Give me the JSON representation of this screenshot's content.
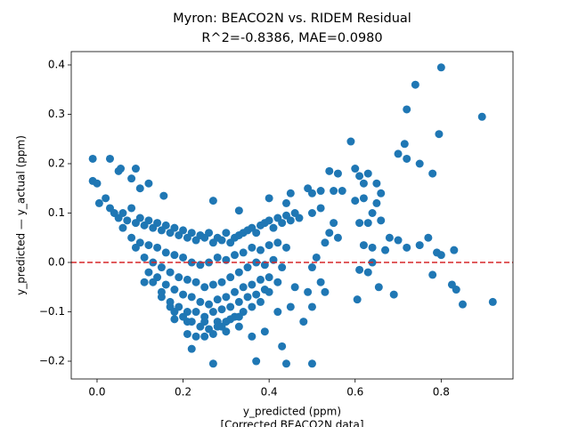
{
  "chart_data": {
    "type": "scatter",
    "title": "Myron: BEACO2N vs. RIDEM Residual",
    "subtitle": "R^2=-0.8386, MAE=0.0980",
    "x_label": "y_predicted (ppm)",
    "x_label_2": "[Corrected BEACO2N data]",
    "y_label": "y_predicted — y_actual (ppm)",
    "xlim": [
      -0.06,
      0.967
    ],
    "ylim": [
      -0.236,
      0.427
    ],
    "xticks": [
      {
        "value": 0,
        "label": "0.0"
      },
      0.2,
      0.4,
      0.6,
      0.8
    ],
    "yticks": [
      {
        "value": -0.2,
        "label": "−0.2"
      },
      {
        "value": -0.1,
        "label": "−0.1"
      },
      {
        "value": 0,
        "label": "0.0"
      },
      0.1,
      0.2,
      0.3,
      0.4
    ],
    "hline": 0,
    "hline_color": "#d62728",
    "color": "#1f77b4",
    "x": [
      -0.01,
      -0.01,
      0.0,
      0.005,
      0.03,
      0.05,
      0.055,
      0.08,
      0.09,
      0.1,
      0.12,
      0.155,
      0.27,
      0.33,
      0.4,
      0.44,
      0.45,
      0.49,
      0.5,
      0.52,
      0.54,
      0.56,
      0.55,
      0.57,
      0.59,
      0.6,
      0.61,
      0.62,
      0.63,
      0.65,
      0.66,
      0.7,
      0.715,
      0.72,
      0.74,
      0.72,
      0.75,
      0.78,
      0.8,
      0.795,
      0.895,
      0.64,
      0.65,
      0.62,
      0.6,
      0.61,
      0.63,
      0.66,
      0.68,
      0.7,
      0.72,
      0.75,
      0.77,
      0.79,
      0.8,
      0.83,
      0.62,
      0.64,
      0.67,
      0.64,
      0.61,
      0.63,
      0.655,
      0.69,
      0.605,
      0.78,
      0.825,
      0.835,
      0.85,
      0.92,
      0.5,
      0.52,
      0.55,
      0.53,
      0.56,
      0.54,
      0.51,
      0.5,
      0.52,
      0.49,
      0.46,
      0.53,
      0.5,
      0.48,
      0.43,
      0.44,
      0.5,
      0.37,
      0.27,
      0.22,
      0.39,
      0.36,
      0.33,
      0.3,
      0.28,
      0.25,
      0.21,
      0.18,
      0.17,
      0.15,
      0.11,
      0.13,
      0.42,
      0.45,
      0.4,
      0.38,
      0.02,
      0.03,
      0.04,
      0.05,
      0.06,
      0.07,
      0.08,
      0.09,
      0.1,
      0.11,
      0.12,
      0.13,
      0.14,
      0.15,
      0.16,
      0.17,
      0.18,
      0.19,
      0.2,
      0.21,
      0.22,
      0.23,
      0.24,
      0.25,
      0.26,
      0.27,
      0.28,
      0.29,
      0.3,
      0.31,
      0.32,
      0.33,
      0.34,
      0.35,
      0.36,
      0.37,
      0.38,
      0.39,
      0.4,
      0.41,
      0.42,
      0.43,
      0.44,
      0.45,
      0.46,
      0.47,
      0.06,
      0.08,
      0.1,
      0.12,
      0.14,
      0.16,
      0.18,
      0.2,
      0.22,
      0.24,
      0.26,
      0.28,
      0.3,
      0.32,
      0.34,
      0.36,
      0.38,
      0.4,
      0.42,
      0.44,
      0.09,
      0.11,
      0.13,
      0.15,
      0.17,
      0.19,
      0.21,
      0.23,
      0.25,
      0.27,
      0.29,
      0.31,
      0.33,
      0.35,
      0.37,
      0.39,
      0.41,
      0.43,
      0.12,
      0.14,
      0.16,
      0.18,
      0.2,
      0.22,
      0.24,
      0.26,
      0.28,
      0.3,
      0.32,
      0.34,
      0.36,
      0.38,
      0.4,
      0.42,
      0.15,
      0.17,
      0.19,
      0.21,
      0.23,
      0.25,
      0.27,
      0.29,
      0.31,
      0.33,
      0.35,
      0.37,
      0.39,
      0.18,
      0.2,
      0.22,
      0.24,
      0.26,
      0.28,
      0.3,
      0.32,
      0.34,
      0.36,
      0.21,
      0.23,
      0.25,
      0.27,
      0.29,
      0.31,
      0.33
    ],
    "values": [
      0.21,
      0.165,
      0.16,
      0.12,
      0.21,
      0.185,
      0.19,
      0.17,
      0.19,
      0.15,
      0.16,
      0.135,
      0.125,
      0.105,
      0.13,
      0.12,
      0.14,
      0.15,
      0.14,
      0.145,
      0.185,
      0.18,
      0.145,
      0.145,
      0.245,
      0.19,
      0.175,
      0.16,
      0.18,
      0.16,
      0.14,
      0.22,
      0.24,
      0.31,
      0.36,
      0.21,
      0.2,
      0.18,
      0.395,
      0.26,
      0.295,
      0.1,
      0.12,
      0.13,
      0.125,
      0.08,
      0.08,
      0.085,
      0.05,
      0.045,
      0.03,
      0.035,
      0.05,
      0.02,
      0.015,
      0.025,
      0.035,
      0.03,
      0.025,
      0.0,
      -0.015,
      -0.02,
      -0.05,
      -0.065,
      -0.075,
      -0.025,
      -0.045,
      -0.055,
      -0.085,
      -0.08,
      0.1,
      0.11,
      0.08,
      0.04,
      0.05,
      0.06,
      0.01,
      -0.01,
      -0.04,
      -0.06,
      -0.05,
      -0.06,
      -0.09,
      -0.12,
      -0.17,
      -0.205,
      -0.205,
      -0.2,
      -0.205,
      -0.175,
      -0.14,
      -0.15,
      -0.13,
      -0.14,
      -0.12,
      -0.12,
      -0.12,
      -0.115,
      -0.09,
      -0.07,
      -0.04,
      -0.04,
      -0.1,
      -0.09,
      -0.06,
      -0.08,
      0.13,
      0.11,
      0.1,
      0.09,
      0.1,
      0.085,
      0.11,
      0.08,
      0.09,
      0.075,
      0.085,
      0.07,
      0.08,
      0.065,
      0.075,
      0.06,
      0.07,
      0.055,
      0.065,
      0.05,
      0.06,
      0.045,
      0.055,
      0.05,
      0.06,
      0.04,
      0.05,
      0.045,
      0.06,
      0.04,
      0.05,
      0.055,
      0.06,
      0.065,
      0.07,
      0.06,
      0.075,
      0.08,
      0.085,
      0.07,
      0.09,
      0.08,
      0.095,
      0.085,
      0.1,
      0.09,
      0.07,
      0.05,
      0.04,
      0.035,
      0.03,
      0.02,
      0.015,
      0.01,
      0.0,
      -0.005,
      0.0,
      0.01,
      0.005,
      0.015,
      0.02,
      0.03,
      0.025,
      0.035,
      0.04,
      0.03,
      0.03,
      0.01,
      0.0,
      -0.01,
      -0.02,
      -0.03,
      -0.035,
      -0.04,
      -0.05,
      -0.045,
      -0.04,
      -0.03,
      -0.02,
      -0.01,
      0.0,
      -0.005,
      0.005,
      -0.01,
      -0.02,
      -0.03,
      -0.045,
      -0.055,
      -0.065,
      -0.07,
      -0.08,
      -0.085,
      -0.075,
      -0.07,
      -0.06,
      -0.05,
      -0.045,
      -0.035,
      -0.03,
      -0.04,
      -0.06,
      -0.08,
      -0.09,
      -0.1,
      -0.1,
      -0.11,
      -0.1,
      -0.095,
      -0.09,
      -0.08,
      -0.07,
      -0.065,
      -0.055,
      -0.1,
      -0.11,
      -0.12,
      -0.13,
      -0.135,
      -0.13,
      -0.12,
      -0.11,
      -0.1,
      -0.09,
      -0.145,
      -0.15,
      -0.15,
      -0.145,
      -0.13,
      -0.115,
      -0.11
    ]
  }
}
